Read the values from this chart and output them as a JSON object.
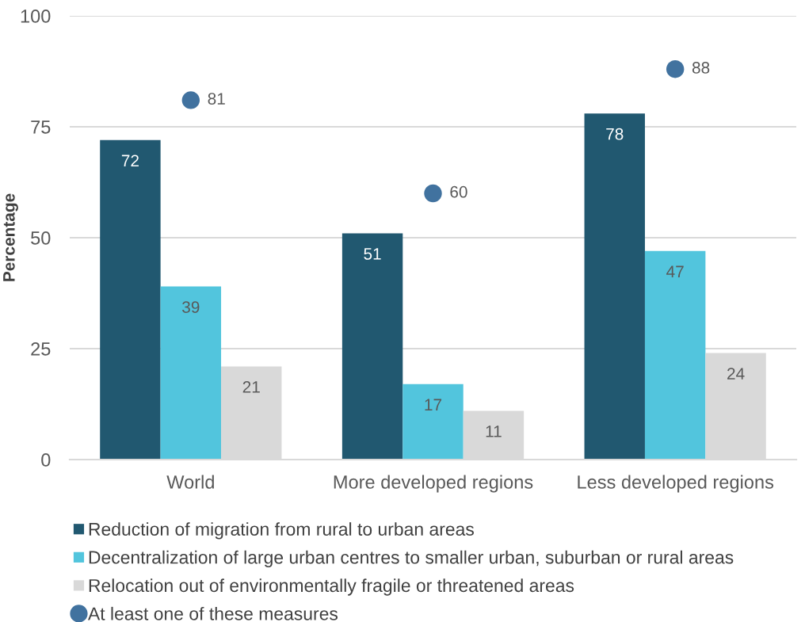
{
  "chart_data": {
    "type": "bar",
    "ylabel": "Percentage",
    "categories": [
      "World",
      "More developed regions",
      "Less developed regions"
    ],
    "series": [
      {
        "name": "Reduction of migration from rural to urban areas",
        "color": "#215870",
        "values": [
          72,
          51,
          78
        ]
      },
      {
        "name": "Decentralization of large urban centres to smaller urban, suburban or rural areas",
        "color": "#52c5dd",
        "values": [
          39,
          17,
          47
        ]
      },
      {
        "name": "Relocation out of environmentally fragile or threatened areas",
        "color": "#d9d9d9",
        "values": [
          21,
          11,
          24
        ]
      },
      {
        "name": "At least one of these measures",
        "type": "scatter",
        "color": "#41729f",
        "x": [
          "World",
          "More developed regions",
          "Less developed regions"
        ],
        "values": [
          81,
          60,
          88
        ]
      }
    ],
    "ylim": [
      0,
      100
    ],
    "yticks": [
      0,
      25,
      50,
      75,
      100
    ],
    "grid": "y",
    "legend": "bottom",
    "marker": "circle",
    "data_labels": true
  }
}
